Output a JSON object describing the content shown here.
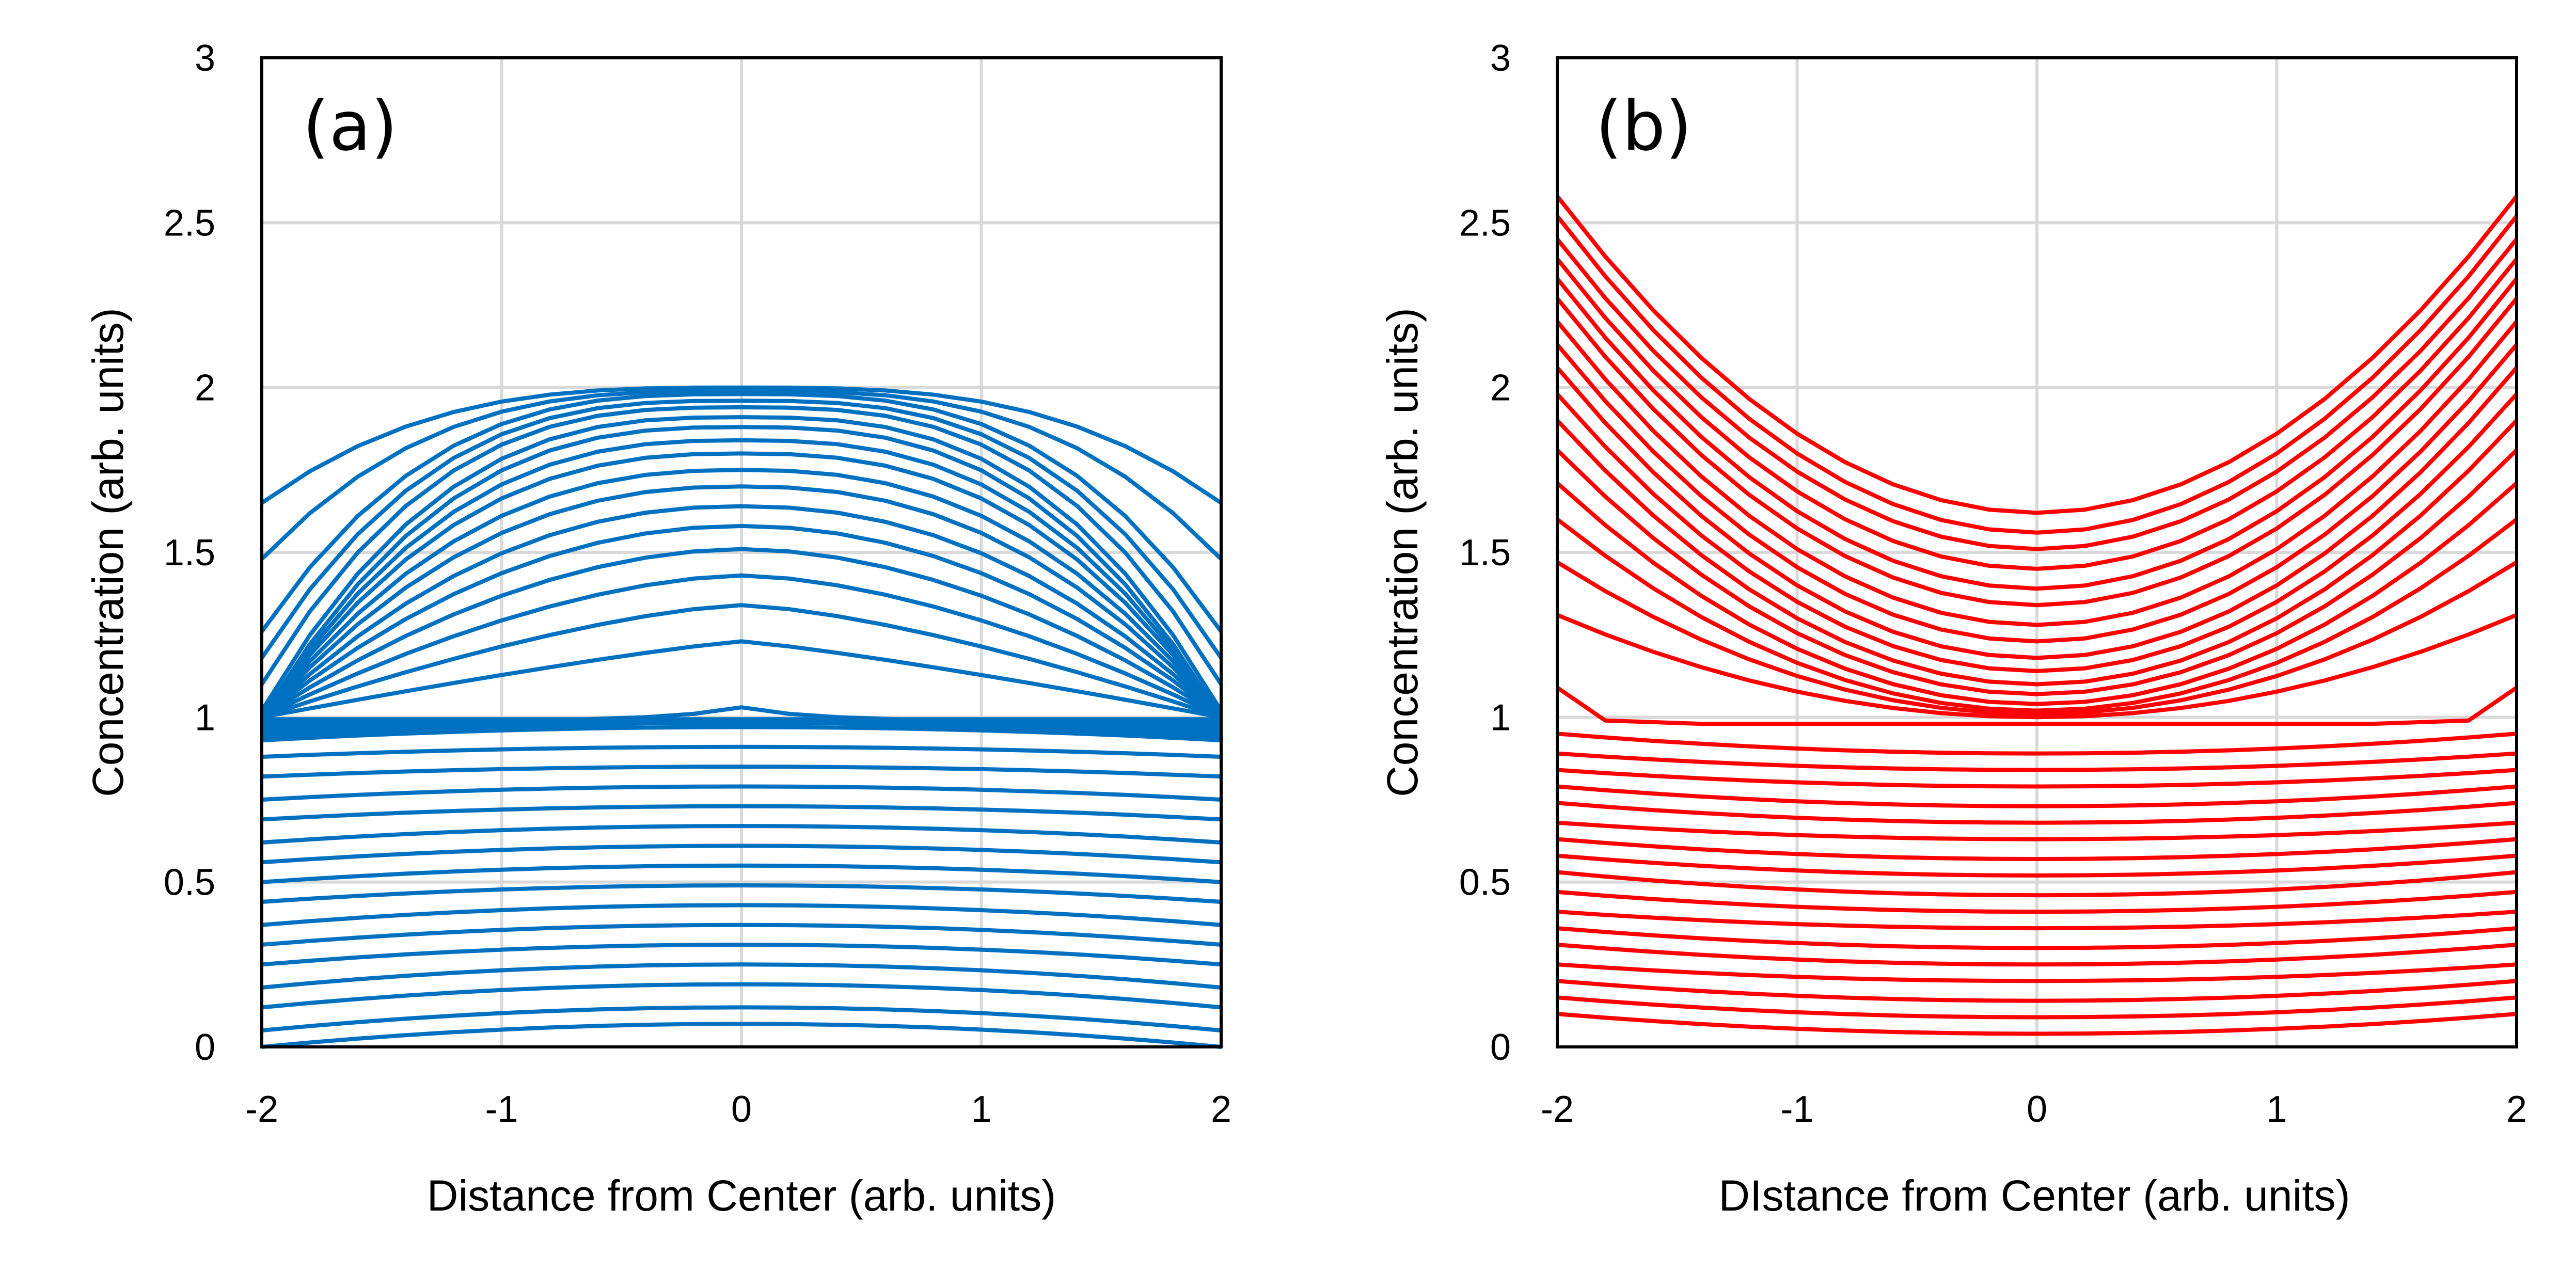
{
  "chart_data": [
    {
      "type": "line",
      "panel_label": "(a)",
      "xlabel": "Distance from Center (arb. units)",
      "ylabel": "Concentration (arb. units)",
      "xlim": [
        -2,
        2
      ],
      "ylim": [
        0,
        3
      ],
      "xticks": [
        "-2",
        "-1",
        "0",
        "1",
        "2"
      ],
      "yticks": [
        "0",
        "0.5",
        "1",
        "1.5",
        "2",
        "2.5",
        "3"
      ],
      "grid": true,
      "color": "#0070C0",
      "x": [
        -2,
        -1.8,
        -1.6,
        -1.4,
        -1.2,
        -1,
        -0.8,
        -0.6,
        -0.4,
        -0.2,
        0,
        0.2,
        0.4,
        0.6,
        0.8,
        1,
        1.2,
        1.4,
        1.6,
        1.8,
        2
      ],
      "lower_curves": {
        "description_values": "center value at x=0 and edge value at x=±2, parabolic profile between",
        "center": [
          0.07,
          0.12,
          0.19,
          0.25,
          0.31,
          0.37,
          0.43,
          0.49,
          0.55,
          0.61,
          0.67,
          0.73,
          0.79,
          0.85,
          0.91,
          0.97
        ],
        "edge": [
          0.0,
          0.05,
          0.12,
          0.18,
          0.25,
          0.31,
          0.37,
          0.44,
          0.5,
          0.56,
          0.62,
          0.69,
          0.75,
          0.82,
          0.88,
          0.93
        ]
      },
      "plateau_curve": {
        "center": 1.03,
        "edge": 0.96,
        "y": [
          0.96,
          0.965,
          0.97,
          0.975,
          0.98,
          0.985,
          0.99,
          0.995,
          1.0,
          1.01,
          1.03,
          1.01,
          1.0,
          0.995,
          0.99,
          0.985,
          0.98,
          0.975,
          0.97,
          0.965,
          0.96
        ]
      },
      "upper_curves": {
        "description_values": "peak value at x=0 and value at x=±2 (1.0 means the curve meets the plateau before the edge)",
        "center": [
          1.23,
          1.34,
          1.43,
          1.51,
          1.58,
          1.64,
          1.7,
          1.75,
          1.8,
          1.84,
          1.88,
          1.91,
          1.94,
          1.96,
          1.98,
          1.99,
          2.0
        ],
        "edge": [
          1.0,
          1.0,
          1.0,
          1.0,
          1.0,
          1.0,
          1.0,
          1.0,
          1.0,
          1.0,
          1.0,
          1.02,
          1.1,
          1.18,
          1.26,
          1.48,
          1.65
        ]
      }
    },
    {
      "type": "line",
      "panel_label": "(b)",
      "xlabel": "DIstance from Center (arb. units)",
      "ylabel": "Concentration (arb. units)",
      "xlim": [
        -2,
        2
      ],
      "ylim": [
        0,
        3
      ],
      "xticks": [
        "-2",
        "-1",
        "0",
        "1",
        "2"
      ],
      "yticks": [
        "0",
        "0.5",
        "1",
        "1.5",
        "2",
        "2.5",
        "3"
      ],
      "grid": true,
      "color": "#FF0000",
      "x": [
        -2,
        -1.8,
        -1.6,
        -1.4,
        -1.2,
        -1,
        -0.8,
        -0.6,
        -0.4,
        -0.2,
        0,
        0.2,
        0.4,
        0.6,
        0.8,
        1,
        1.2,
        1.4,
        1.6,
        1.8,
        2
      ],
      "lower_curves": {
        "center": [
          0.04,
          0.09,
          0.14,
          0.2,
          0.25,
          0.3,
          0.36,
          0.41,
          0.46,
          0.52,
          0.57,
          0.63,
          0.68,
          0.73,
          0.79,
          0.84,
          0.89
        ],
        "edge": [
          0.1,
          0.15,
          0.2,
          0.25,
          0.31,
          0.36,
          0.41,
          0.47,
          0.53,
          0.58,
          0.63,
          0.68,
          0.74,
          0.79,
          0.84,
          0.89,
          0.95
        ]
      },
      "plateau_curve": {
        "y": [
          1.09,
          0.99,
          0.985,
          0.98,
          0.98,
          0.98,
          0.98,
          0.98,
          0.98,
          0.98,
          0.98,
          0.98,
          0.98,
          0.98,
          0.98,
          0.98,
          0.98,
          0.98,
          0.985,
          0.99,
          1.09
        ]
      },
      "upper_curves": {
        "center": [
          1.0,
          1.01,
          1.02,
          1.04,
          1.07,
          1.1,
          1.14,
          1.18,
          1.23,
          1.28,
          1.34,
          1.39,
          1.45,
          1.51,
          1.56,
          1.62
        ],
        "edge": [
          1.31,
          1.47,
          1.6,
          1.71,
          1.81,
          1.9,
          1.98,
          2.06,
          2.13,
          2.2,
          2.27,
          2.33,
          2.39,
          2.45,
          2.52,
          2.58
        ]
      }
    }
  ]
}
